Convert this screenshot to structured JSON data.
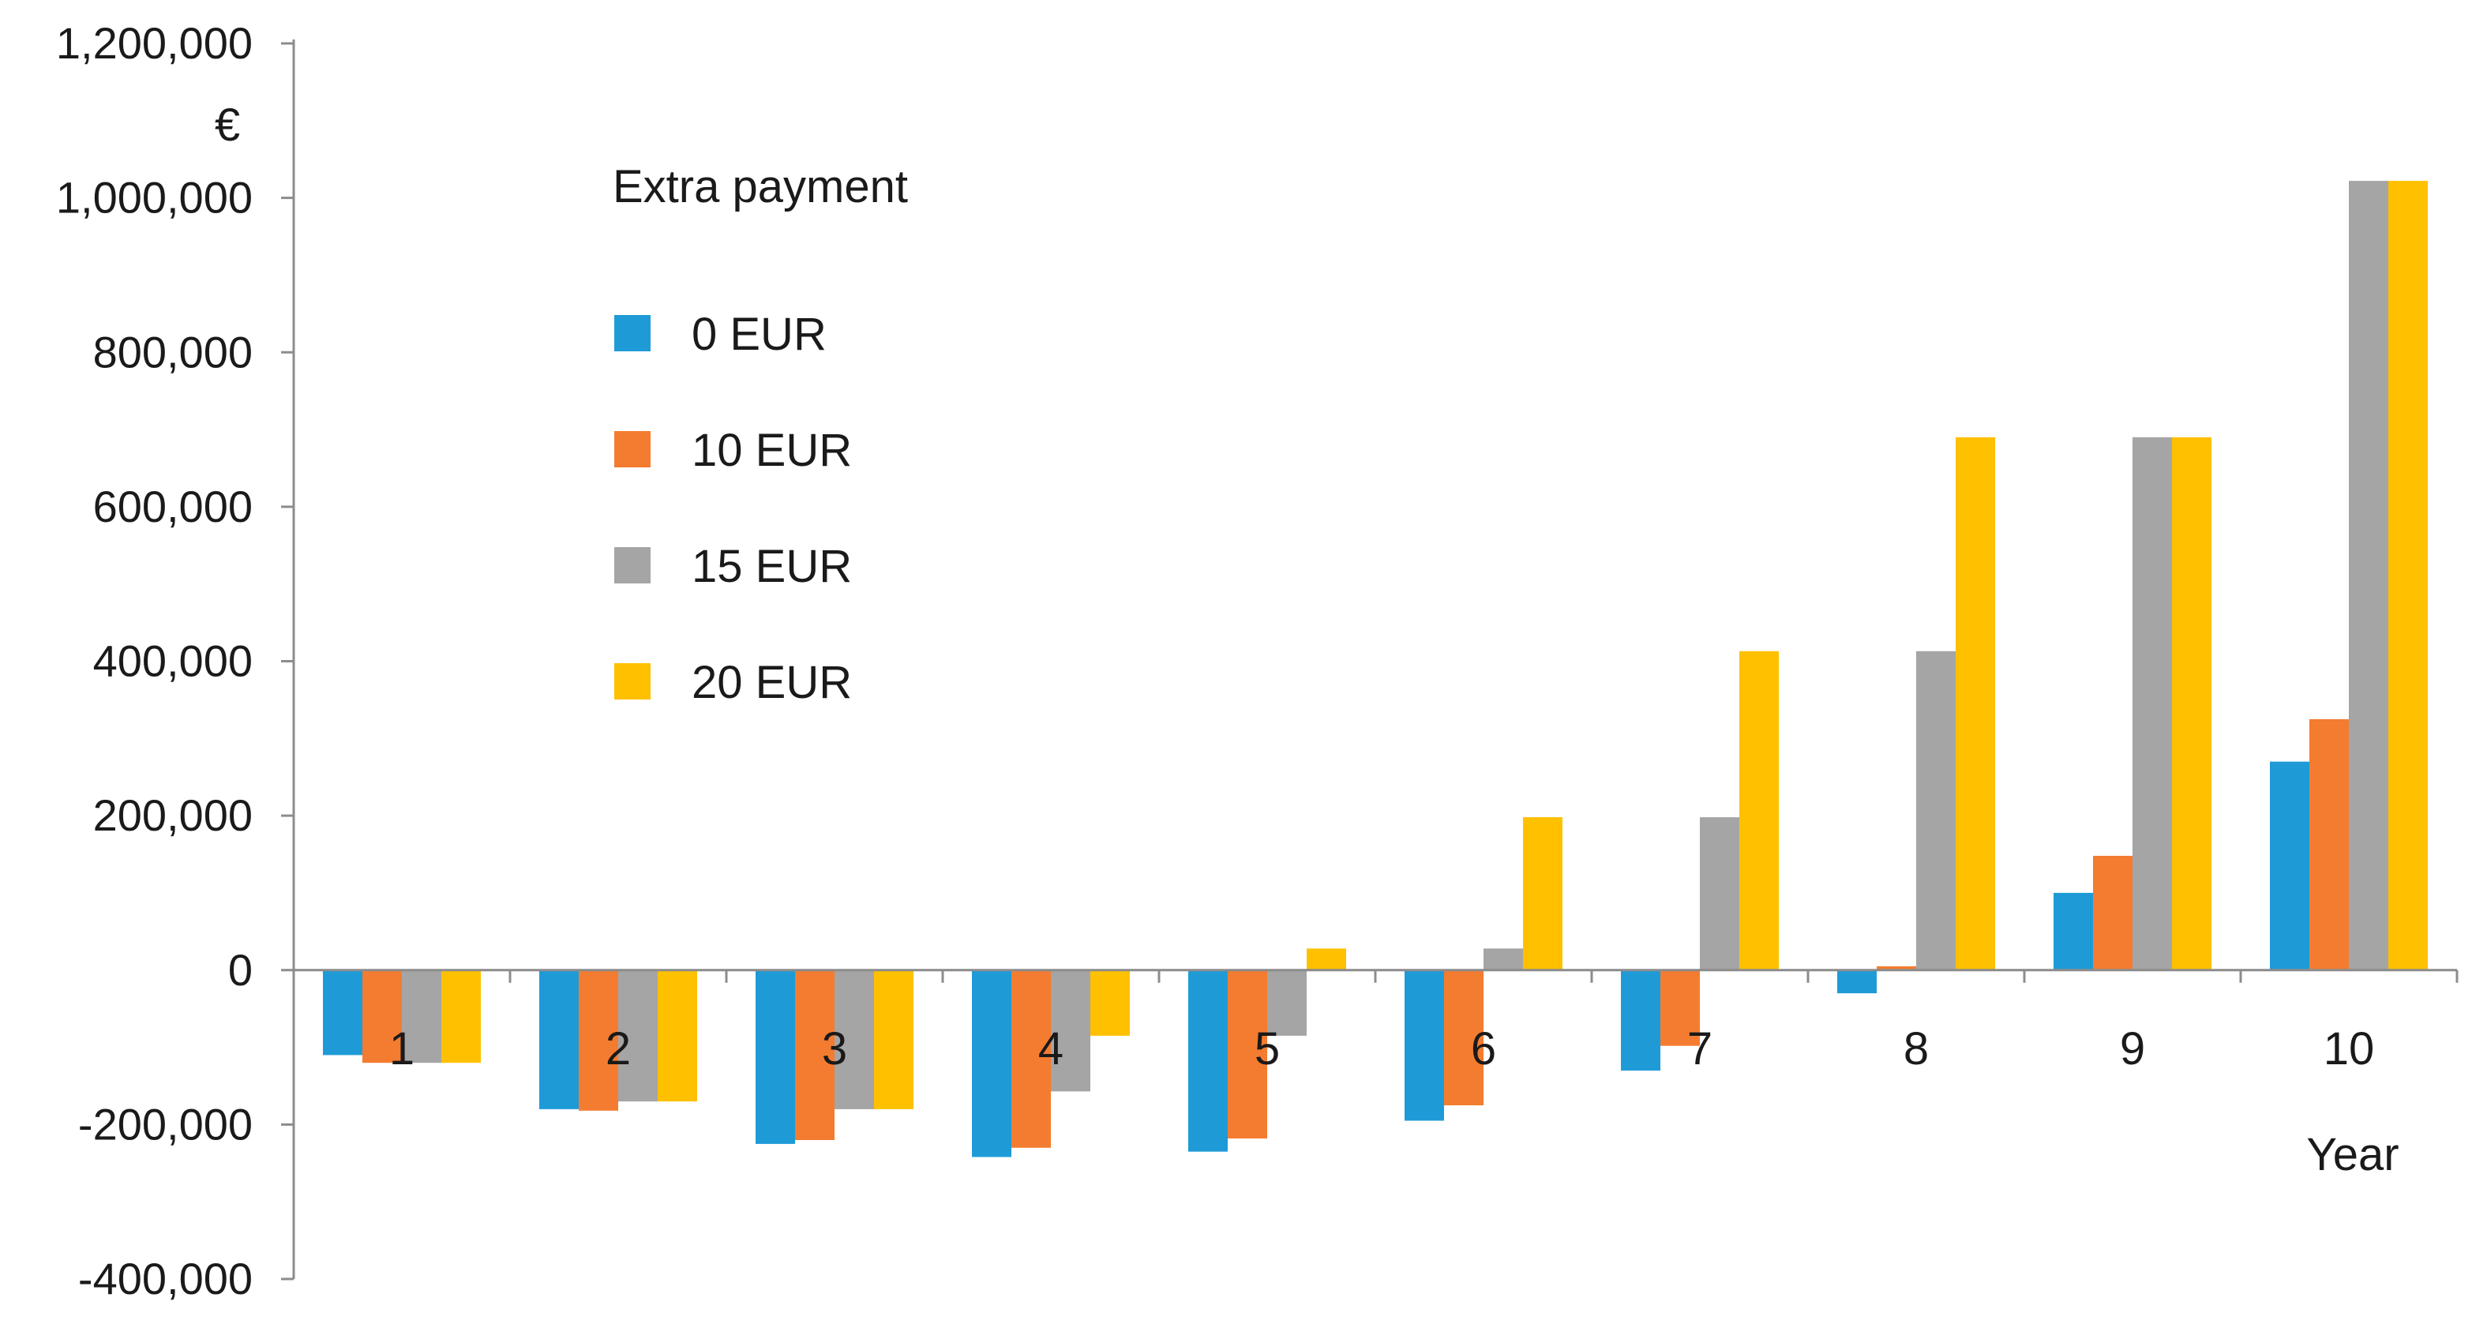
{
  "chart_data": {
    "type": "bar",
    "categories": [
      "1",
      "2",
      "3",
      "4",
      "5",
      "6",
      "7",
      "8",
      "9",
      "10"
    ],
    "series": [
      {
        "name": "0 EUR",
        "color": "#1e9bd7",
        "values": [
          -110000,
          -180000,
          -225000,
          -242000,
          -235000,
          -195000,
          -130000,
          -30000,
          100000,
          270000
        ]
      },
      {
        "name": "10 EUR",
        "color": "#f47c30",
        "values": [
          -120000,
          -182000,
          -220000,
          -230000,
          -218000,
          -175000,
          -98000,
          5000,
          148000,
          325000
        ]
      },
      {
        "name": "15 EUR",
        "color": "#a5a5a5",
        "values": [
          -120000,
          -170000,
          -180000,
          -157000,
          -85000,
          28000,
          198000,
          413000,
          690000,
          1022000
        ]
      },
      {
        "name": "20 EUR",
        "color": "#ffc000",
        "values": [
          -120000,
          -170000,
          -180000,
          -85000,
          28000,
          198000,
          413000,
          690000,
          690000,
          1022000
        ]
      }
    ],
    "ylim": [
      -400000,
      1200000
    ],
    "yticks": [
      -400000,
      -200000,
      0,
      200000,
      400000,
      600000,
      800000,
      1000000,
      1200000
    ],
    "ytick_labels": [
      "-400,000",
      "-200,000",
      "0",
      "200,000",
      "400,000",
      "600,000",
      "800,000",
      "1,000,000",
      "1,200,000"
    ],
    "ylabel": "€",
    "xlabel": "Year",
    "legend_title": "Extra payment",
    "legend_position": "top-left inside",
    "grid": false
  }
}
